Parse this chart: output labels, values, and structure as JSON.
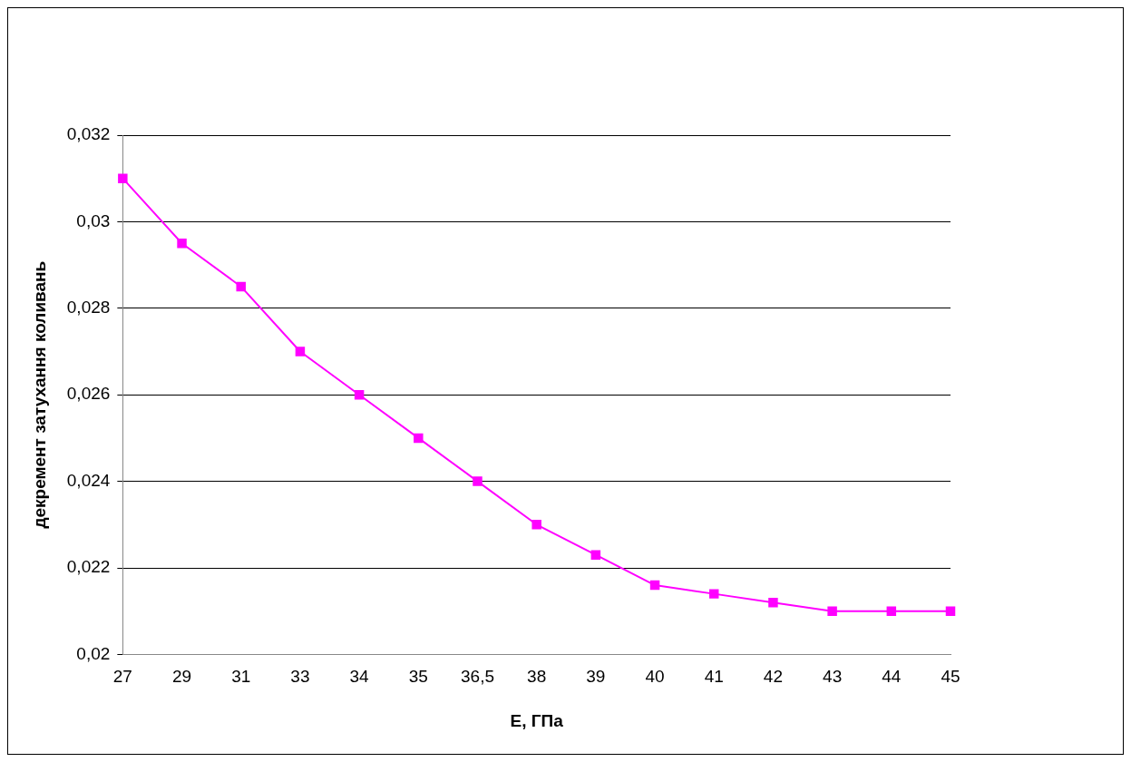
{
  "chart_data": {
    "type": "line",
    "xlabel": "E, ГПа",
    "ylabel": "декремент затухання коливань",
    "categories": [
      "27",
      "29",
      "31",
      "33",
      "34",
      "35",
      "36,5",
      "38",
      "39",
      "40",
      "41",
      "42",
      "43",
      "44",
      "45"
    ],
    "series": [
      {
        "color": "#ff00ff",
        "values": [
          0.031,
          0.0295,
          0.0285,
          0.027,
          0.026,
          0.025,
          0.024,
          0.023,
          0.0223,
          0.0216,
          0.0214,
          0.0212,
          0.021,
          0.021,
          0.021
        ]
      }
    ],
    "ylim": [
      0.02,
      0.032
    ],
    "yticks": [
      {
        "value": 0.02,
        "label": "0,02"
      },
      {
        "value": 0.022,
        "label": "0,022"
      },
      {
        "value": 0.024,
        "label": "0,024"
      },
      {
        "value": 0.026,
        "label": "0,026"
      },
      {
        "value": 0.028,
        "label": "0,028"
      },
      {
        "value": 0.03,
        "label": "0,03"
      },
      {
        "value": 0.032,
        "label": "0,032"
      }
    ],
    "grid": "y",
    "legend": false,
    "marker": "square",
    "line_style": "solid"
  }
}
